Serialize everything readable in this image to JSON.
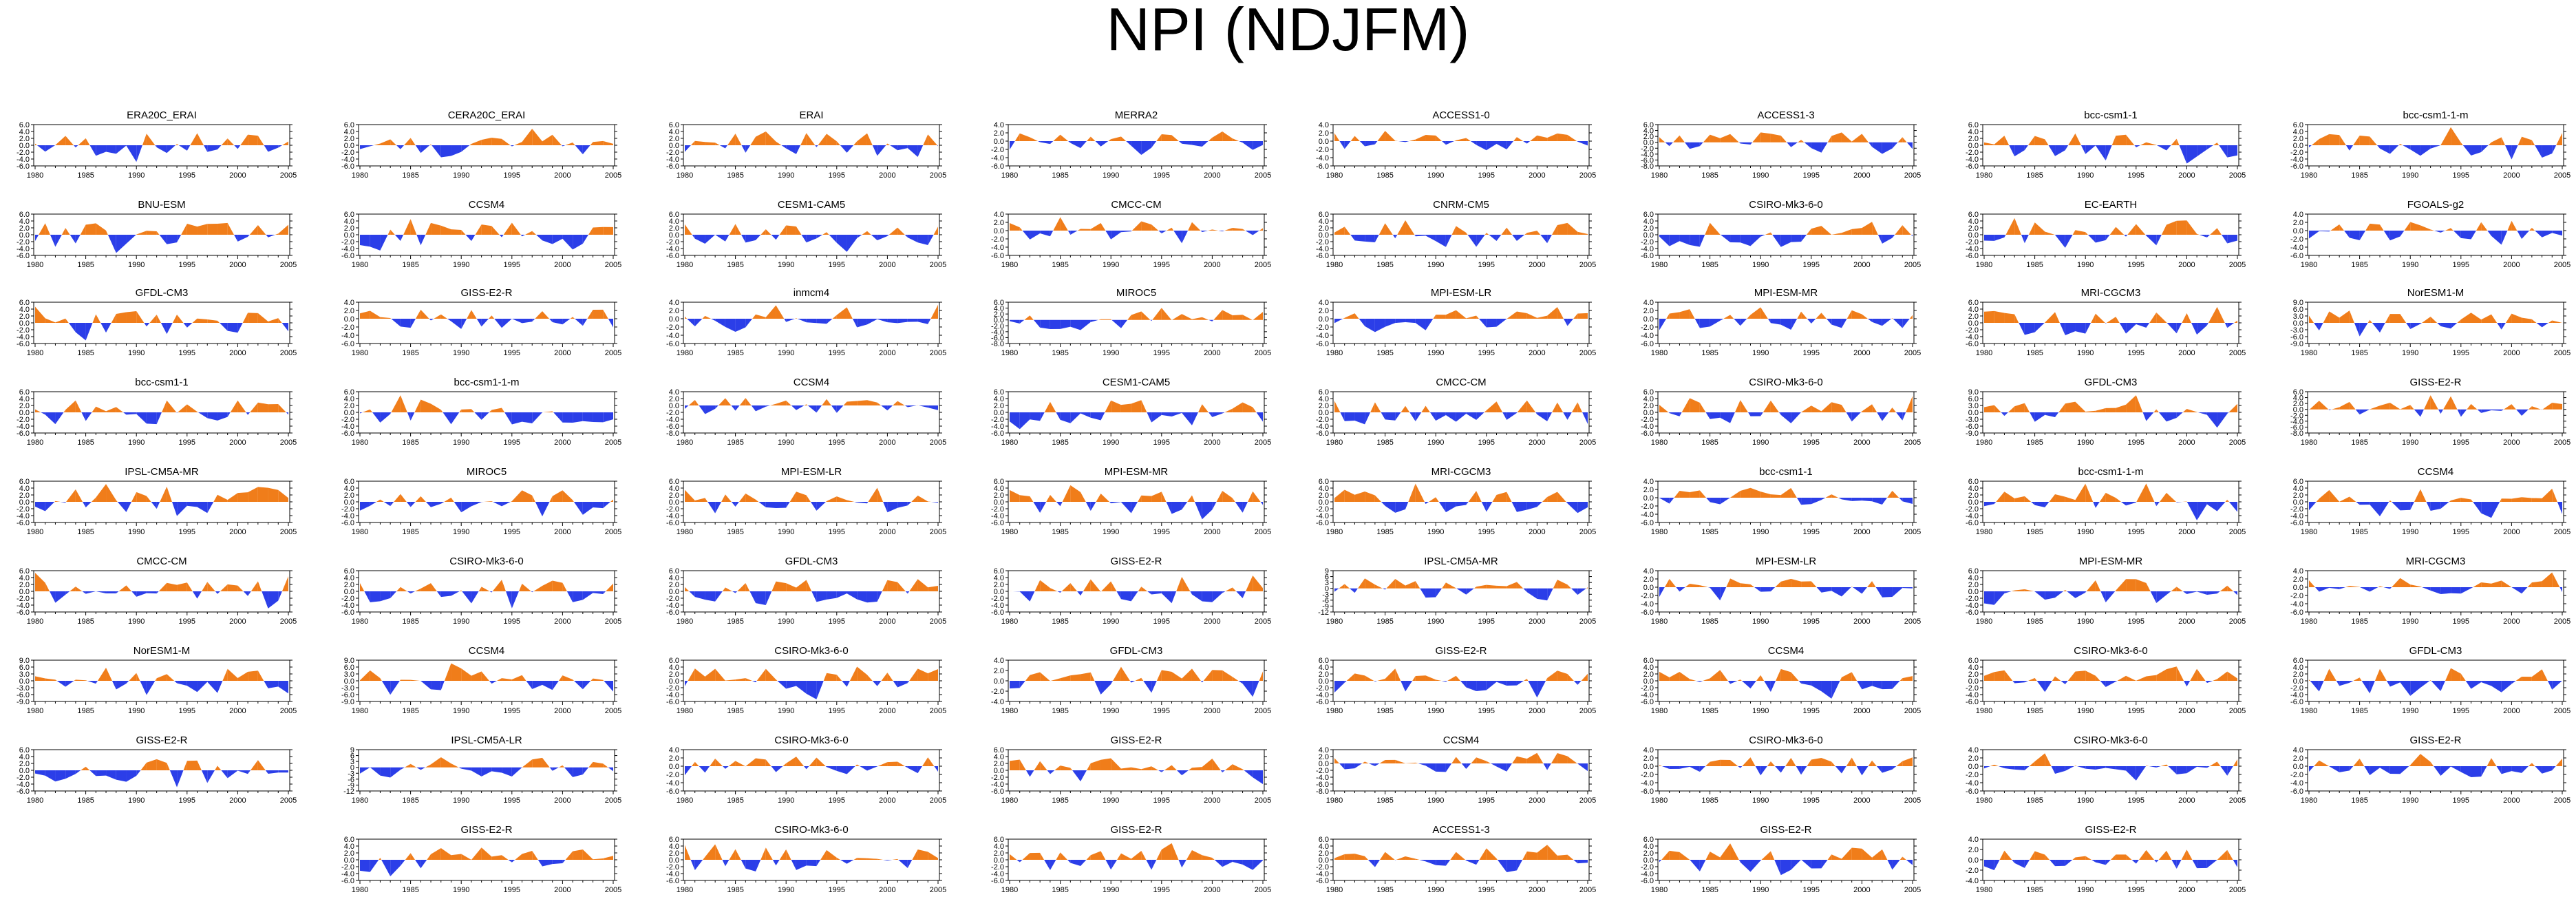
{
  "title": "NPI (NDJFM)",
  "colors": {
    "positive": "#f07d1a",
    "negative": "#2b3ee8"
  },
  "x_ticks": [
    "1980",
    "1985",
    "1990",
    "1995",
    "2000",
    "2005"
  ],
  "chart_data": [
    {
      "type": "area",
      "title": "ERA20C_ERAI",
      "ylim": [
        -6,
        6
      ],
      "yticks": [
        "6.0",
        "4.0",
        "2.0",
        "0.0",
        "-2.0",
        "-4.0",
        "-6.0"
      ]
    },
    {
      "type": "area",
      "title": "CERA20C_ERAI",
      "ylim": [
        -6,
        6
      ],
      "yticks": [
        "6.0",
        "4.0",
        "2.0",
        "0.0",
        "-2.0",
        "-4.0",
        "-6.0"
      ]
    },
    {
      "type": "area",
      "title": "ERAI",
      "ylim": [
        -6,
        6
      ],
      "yticks": [
        "6.0",
        "4.0",
        "2.0",
        "0.0",
        "-2.0",
        "-4.0",
        "-6.0"
      ]
    },
    {
      "type": "area",
      "title": "MERRA2",
      "ylim": [
        -6,
        4
      ],
      "yticks": [
        "4.0",
        "2.0",
        "0.0",
        "-2.0",
        "-4.0",
        "-6.0"
      ]
    },
    {
      "type": "area",
      "title": "ACCESS1-0",
      "ylim": [
        -6,
        4
      ],
      "yticks": [
        "4.0",
        "2.0",
        "0.0",
        "-2.0",
        "-4.0",
        "-6.0"
      ]
    },
    {
      "type": "area",
      "title": "ACCESS1-3",
      "ylim": [
        -8,
        6
      ],
      "yticks": [
        "6.0",
        "4.0",
        "2.0",
        "0.0",
        "-2.0",
        "-4.0",
        "-6.0",
        "-8.0"
      ]
    },
    {
      "type": "area",
      "title": "bcc-csm1-1",
      "ylim": [
        -6,
        6
      ],
      "yticks": [
        "6.0",
        "4.0",
        "2.0",
        "0.0",
        "-2.0",
        "-4.0",
        "-6.0"
      ]
    },
    {
      "type": "area",
      "title": "bcc-csm1-1-m",
      "ylim": [
        -6,
        6
      ],
      "yticks": [
        "6.0",
        "4.0",
        "2.0",
        "0.0",
        "-2.0",
        "-4.0",
        "-6.0"
      ]
    },
    {
      "type": "area",
      "title": "BNU-ESM",
      "ylim": [
        -6,
        6
      ],
      "yticks": [
        "6.0",
        "4.0",
        "2.0",
        "0.0",
        "-2.0",
        "-4.0",
        "-6.0"
      ]
    },
    {
      "type": "area",
      "title": "CCSM4",
      "ylim": [
        -6,
        6
      ],
      "yticks": [
        "6.0",
        "4.0",
        "2.0",
        "0.0",
        "-2.0",
        "-4.0",
        "-6.0"
      ]
    },
    {
      "type": "area",
      "title": "CESM1-CAM5",
      "ylim": [
        -6,
        6
      ],
      "yticks": [
        "6.0",
        "4.0",
        "2.0",
        "0.0",
        "-2.0",
        "-4.0",
        "-6.0"
      ]
    },
    {
      "type": "area",
      "title": "CMCC-CM",
      "ylim": [
        -6,
        4
      ],
      "yticks": [
        "4.0",
        "2.0",
        "0.0",
        "-2.0",
        "-4.0",
        "-6.0"
      ]
    },
    {
      "type": "area",
      "title": "CNRM-CM5",
      "ylim": [
        -6,
        6
      ],
      "yticks": [
        "6.0",
        "4.0",
        "2.0",
        "0.0",
        "-2.0",
        "-4.0",
        "-6.0"
      ]
    },
    {
      "type": "area",
      "title": "CSIRO-Mk3-6-0",
      "ylim": [
        -6,
        6
      ],
      "yticks": [
        "6.0",
        "4.0",
        "2.0",
        "0.0",
        "-2.0",
        "-4.0",
        "-6.0"
      ]
    },
    {
      "type": "area",
      "title": "EC-EARTH",
      "ylim": [
        -6,
        6
      ],
      "yticks": [
        "6.0",
        "4.0",
        "2.0",
        "0.0",
        "-2.0",
        "-4.0",
        "-6.0"
      ]
    },
    {
      "type": "area",
      "title": "FGOALS-g2",
      "ylim": [
        -6,
        4
      ],
      "yticks": [
        "4.0",
        "2.0",
        "0.0",
        "-2.0",
        "-4.0",
        "-6.0"
      ]
    },
    {
      "type": "area",
      "title": "GFDL-CM3",
      "ylim": [
        -6,
        6
      ],
      "yticks": [
        "6.0",
        "4.0",
        "2.0",
        "0.0",
        "-2.0",
        "-4.0",
        "-6.0"
      ]
    },
    {
      "type": "area",
      "title": "GISS-E2-R",
      "ylim": [
        -6,
        4
      ],
      "yticks": [
        "4.0",
        "2.0",
        "0.0",
        "-2.0",
        "-4.0",
        "-6.0"
      ]
    },
    {
      "type": "area",
      "title": "inmcm4",
      "ylim": [
        -6,
        4
      ],
      "yticks": [
        "4.0",
        "2.0",
        "0.0",
        "-2.0",
        "-4.0",
        "-6.0"
      ]
    },
    {
      "type": "area",
      "title": "MIROC5",
      "ylim": [
        -8,
        6
      ],
      "yticks": [
        "6.0",
        "4.0",
        "2.0",
        "0.0",
        "-2.0",
        "-4.0",
        "-6.0",
        "-8.0"
      ]
    },
    {
      "type": "area",
      "title": "MPI-ESM-LR",
      "ylim": [
        -6,
        4
      ],
      "yticks": [
        "4.0",
        "2.0",
        "0.0",
        "-2.0",
        "-4.0",
        "-6.0"
      ]
    },
    {
      "type": "area",
      "title": "MPI-ESM-MR",
      "ylim": [
        -6,
        4
      ],
      "yticks": [
        "4.0",
        "2.0",
        "0.0",
        "-2.0",
        "-4.0",
        "-6.0"
      ]
    },
    {
      "type": "area",
      "title": "MRI-CGCM3",
      "ylim": [
        -6,
        6
      ],
      "yticks": [
        "6.0",
        "4.0",
        "2.0",
        "0.0",
        "-2.0",
        "-4.0",
        "-6.0"
      ]
    },
    {
      "type": "area",
      "title": "NorESM1-M",
      "ylim": [
        -9,
        9
      ],
      "yticks": [
        "9.0",
        "6.0",
        "3.0",
        "0.0",
        "-3.0",
        "-6.0",
        "-9.0"
      ]
    },
    {
      "type": "area",
      "title": "bcc-csm1-1",
      "ylim": [
        -6,
        6
      ],
      "yticks": [
        "6.0",
        "4.0",
        "2.0",
        "0.0",
        "-2.0",
        "-4.0",
        "-6.0"
      ]
    },
    {
      "type": "area",
      "title": "bcc-csm1-1-m",
      "ylim": [
        -6,
        6
      ],
      "yticks": [
        "6.0",
        "4.0",
        "2.0",
        "0.0",
        "-2.0",
        "-4.0",
        "-6.0"
      ]
    },
    {
      "type": "area",
      "title": "CCSM4",
      "ylim": [
        -8,
        4
      ],
      "yticks": [
        "4.0",
        "2.0",
        "0.0",
        "-2.0",
        "-4.0",
        "-6.0",
        "-8.0"
      ]
    },
    {
      "type": "area",
      "title": "CESM1-CAM5",
      "ylim": [
        -6,
        6
      ],
      "yticks": [
        "6.0",
        "4.0",
        "2.0",
        "0.0",
        "-2.0",
        "-4.0",
        "-6.0"
      ]
    },
    {
      "type": "area",
      "title": "CMCC-CM",
      "ylim": [
        -6,
        6
      ],
      "yticks": [
        "6.0",
        "4.0",
        "2.0",
        "0.0",
        "-2.0",
        "-4.0",
        "-6.0"
      ]
    },
    {
      "type": "area",
      "title": "CSIRO-Mk3-6-0",
      "ylim": [
        -6,
        6
      ],
      "yticks": [
        "6.0",
        "4.0",
        "2.0",
        "0.0",
        "-2.0",
        "-4.0",
        "-6.0"
      ]
    },
    {
      "type": "area",
      "title": "GFDL-CM3",
      "ylim": [
        -9,
        9
      ],
      "yticks": [
        "9.0",
        "6.0",
        "3.0",
        "0.0",
        "-3.0",
        "-6.0",
        "-9.0"
      ]
    },
    {
      "type": "area",
      "title": "GISS-E2-R",
      "ylim": [
        -8,
        6
      ],
      "yticks": [
        "6.0",
        "4.0",
        "2.0",
        "0.0",
        "-2.0",
        "-4.0",
        "-6.0",
        "-8.0"
      ]
    },
    {
      "type": "area",
      "title": "IPSL-CM5A-MR",
      "ylim": [
        -6,
        6
      ],
      "yticks": [
        "6.0",
        "4.0",
        "2.0",
        "0.0",
        "-2.0",
        "-4.0",
        "-6.0"
      ]
    },
    {
      "type": "area",
      "title": "MIROC5",
      "ylim": [
        -6,
        6
      ],
      "yticks": [
        "6.0",
        "4.0",
        "2.0",
        "0.0",
        "-2.0",
        "-4.0",
        "-6.0"
      ]
    },
    {
      "type": "area",
      "title": "MPI-ESM-LR",
      "ylim": [
        -6,
        6
      ],
      "yticks": [
        "6.0",
        "4.0",
        "2.0",
        "0.0",
        "-2.0",
        "-4.0",
        "-6.0"
      ]
    },
    {
      "type": "area",
      "title": "MPI-ESM-MR",
      "ylim": [
        -6,
        6
      ],
      "yticks": [
        "6.0",
        "4.0",
        "2.0",
        "0.0",
        "-2.0",
        "-4.0",
        "-6.0"
      ]
    },
    {
      "type": "area",
      "title": "MRI-CGCM3",
      "ylim": [
        -6,
        6
      ],
      "yticks": [
        "6.0",
        "4.0",
        "2.0",
        "0.0",
        "-2.0",
        "-4.0",
        "-6.0"
      ]
    },
    {
      "type": "area",
      "title": "bcc-csm1-1",
      "ylim": [
        -6,
        4
      ],
      "yticks": [
        "4.0",
        "2.0",
        "0.0",
        "-2.0",
        "-4.0",
        "-6.0"
      ]
    },
    {
      "type": "area",
      "title": "bcc-csm1-1-m",
      "ylim": [
        -6,
        6
      ],
      "yticks": [
        "6.0",
        "4.0",
        "2.0",
        "0.0",
        "-2.0",
        "-4.0",
        "-6.0"
      ]
    },
    {
      "type": "area",
      "title": "CCSM4",
      "ylim": [
        -6,
        6
      ],
      "yticks": [
        "6.0",
        "4.0",
        "2.0",
        "0.0",
        "-2.0",
        "-4.0",
        "-6.0"
      ]
    },
    {
      "type": "area",
      "title": "CMCC-CM",
      "ylim": [
        -6,
        6
      ],
      "yticks": [
        "6.0",
        "4.0",
        "2.0",
        "0.0",
        "-2.0",
        "-4.0",
        "-6.0"
      ]
    },
    {
      "type": "area",
      "title": "CSIRO-Mk3-6-0",
      "ylim": [
        -6,
        6
      ],
      "yticks": [
        "6.0",
        "4.0",
        "2.0",
        "0.0",
        "-2.0",
        "-4.0",
        "-6.0"
      ]
    },
    {
      "type": "area",
      "title": "GFDL-CM3",
      "ylim": [
        -6,
        6
      ],
      "yticks": [
        "6.0",
        "4.0",
        "2.0",
        "0.0",
        "-2.0",
        "-4.0",
        "-6.0"
      ]
    },
    {
      "type": "area",
      "title": "GISS-E2-R",
      "ylim": [
        -6,
        6
      ],
      "yticks": [
        "6.0",
        "4.0",
        "2.0",
        "0.0",
        "-2.0",
        "-4.0",
        "-6.0"
      ]
    },
    {
      "type": "area",
      "title": "IPSL-CM5A-MR",
      "ylim": [
        -12,
        9
      ],
      "yticks": [
        "9",
        "6",
        "3",
        "0",
        "-3",
        "-6",
        "-9",
        "-12"
      ]
    },
    {
      "type": "area",
      "title": "MPI-ESM-LR",
      "ylim": [
        -6,
        4
      ],
      "yticks": [
        "4.0",
        "2.0",
        "0.0",
        "-2.0",
        "-4.0",
        "-6.0"
      ]
    },
    {
      "type": "area",
      "title": "MPI-ESM-MR",
      "ylim": [
        -6,
        6
      ],
      "yticks": [
        "6.0",
        "4.0",
        "2.0",
        "0.0",
        "-2.0",
        "-4.0",
        "-6.0"
      ]
    },
    {
      "type": "area",
      "title": "MRI-CGCM3",
      "ylim": [
        -6,
        4
      ],
      "yticks": [
        "4.0",
        "2.0",
        "0.0",
        "-2.0",
        "-4.0",
        "-6.0"
      ]
    },
    {
      "type": "area",
      "title": "NorESM1-M",
      "ylim": [
        -9,
        9
      ],
      "yticks": [
        "9.0",
        "6.0",
        "3.0",
        "0.0",
        "-3.0",
        "-6.0",
        "-9.0"
      ]
    },
    {
      "type": "area",
      "title": "CCSM4",
      "ylim": [
        -9,
        9
      ],
      "yticks": [
        "9.0",
        "6.0",
        "3.0",
        "0.0",
        "-3.0",
        "-6.0",
        "-9.0"
      ]
    },
    {
      "type": "area",
      "title": "CSIRO-Mk3-6-0",
      "ylim": [
        -6,
        6
      ],
      "yticks": [
        "6.0",
        "4.0",
        "2.0",
        "0.0",
        "-2.0",
        "-4.0",
        "-6.0"
      ]
    },
    {
      "type": "area",
      "title": "GFDL-CM3",
      "ylim": [
        -4,
        4
      ],
      "yticks": [
        "4.0",
        "2.0",
        "0.0",
        "-2.0",
        "-4.0"
      ]
    },
    {
      "type": "area",
      "title": "GISS-E2-R",
      "ylim": [
        -6,
        6
      ],
      "yticks": [
        "6.0",
        "4.0",
        "2.0",
        "0.0",
        "-2.0",
        "-4.0",
        "-6.0"
      ]
    },
    {
      "type": "area",
      "title": "CCSM4",
      "ylim": [
        -6,
        6
      ],
      "yticks": [
        "6.0",
        "4.0",
        "2.0",
        "0.0",
        "-2.0",
        "-4.0",
        "-6.0"
      ]
    },
    {
      "type": "area",
      "title": "CSIRO-Mk3-6-0",
      "ylim": [
        -6,
        6
      ],
      "yticks": [
        "6.0",
        "4.0",
        "2.0",
        "0.0",
        "-2.0",
        "-4.0",
        "-6.0"
      ]
    },
    {
      "type": "area",
      "title": "GFDL-CM3",
      "ylim": [
        -6,
        6
      ],
      "yticks": [
        "6.0",
        "4.0",
        "2.0",
        "0.0",
        "-2.0",
        "-4.0",
        "-6.0"
      ]
    },
    {
      "type": "area",
      "title": "GISS-E2-R",
      "ylim": [
        -6,
        6
      ],
      "yticks": [
        "6.0",
        "4.0",
        "2.0",
        "0.0",
        "-2.0",
        "-4.0",
        "-6.0"
      ]
    },
    {
      "type": "area",
      "title": "IPSL-CM5A-LR",
      "ylim": [
        -12,
        9
      ],
      "yticks": [
        "9",
        "6",
        "3",
        "0",
        "-3",
        "-6",
        "-9",
        "-12"
      ]
    },
    {
      "type": "area",
      "title": "CSIRO-Mk3-6-0",
      "ylim": [
        -6,
        4
      ],
      "yticks": [
        "4.0",
        "2.0",
        "0.0",
        "-2.0",
        "-4.0",
        "-6.0"
      ]
    },
    {
      "type": "area",
      "title": "GISS-E2-R",
      "ylim": [
        -6,
        6
      ],
      "yticks": [
        "6.0",
        "4.0",
        "2.0",
        "0.0",
        "-2.0",
        "-4.0",
        "-6.0"
      ]
    },
    {
      "type": "area",
      "title": "CCSM4",
      "ylim": [
        -8,
        4
      ],
      "yticks": [
        "4.0",
        "2.0",
        "0.0",
        "-2.0",
        "-4.0",
        "-6.0",
        "-8.0"
      ]
    },
    {
      "type": "area",
      "title": "CSIRO-Mk3-6-0",
      "ylim": [
        -6,
        4
      ],
      "yticks": [
        "4.0",
        "2.0",
        "0.0",
        "-2.0",
        "-4.0",
        "-6.0"
      ]
    },
    {
      "type": "area",
      "title": "CSIRO-Mk3-6-0",
      "ylim": [
        -6,
        4
      ],
      "yticks": [
        "4.0",
        "2.0",
        "0.0",
        "-2.0",
        "-4.0",
        "-6.0"
      ]
    },
    {
      "type": "area",
      "title": "GISS-E2-R",
      "ylim": [
        -6,
        4
      ],
      "yticks": [
        "4.0",
        "2.0",
        "0.0",
        "-2.0",
        "-4.0",
        "-6.0"
      ]
    },
    {
      "type": "area",
      "title": "GISS-E2-R",
      "ylim": [
        -6,
        6
      ],
      "yticks": [
        "6.0",
        "4.0",
        "2.0",
        "0.0",
        "-2.0",
        "-4.0",
        "-6.0"
      ]
    },
    {
      "type": "area",
      "title": "CSIRO-Mk3-6-0",
      "ylim": [
        -6,
        6
      ],
      "yticks": [
        "6.0",
        "4.0",
        "2.0",
        "0.0",
        "-2.0",
        "-4.0",
        "-6.0"
      ]
    },
    {
      "type": "area",
      "title": "GISS-E2-R",
      "ylim": [
        -6,
        6
      ],
      "yticks": [
        "6.0",
        "4.0",
        "2.0",
        "0.0",
        "-2.0",
        "-4.0",
        "-6.0"
      ]
    },
    {
      "type": "area",
      "title": "ACCESS1-3",
      "ylim": [
        -6,
        6
      ],
      "yticks": [
        "6.0",
        "4.0",
        "2.0",
        "0.0",
        "-2.0",
        "-4.0",
        "-6.0"
      ]
    },
    {
      "type": "area",
      "title": "GISS-E2-R",
      "ylim": [
        -6,
        6
      ],
      "yticks": [
        "6.0",
        "4.0",
        "2.0",
        "0.0",
        "-2.0",
        "-4.0",
        "-6.0"
      ]
    },
    {
      "type": "area",
      "title": "GISS-E2-R",
      "ylim": [
        -4,
        4
      ],
      "yticks": [
        "4.0",
        "2.0",
        "0.0",
        "-2.0",
        "-4.0"
      ]
    }
  ]
}
